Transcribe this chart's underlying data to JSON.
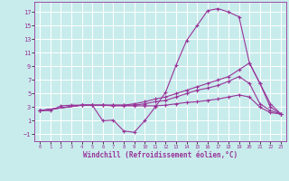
{
  "xlabel": "Windchill (Refroidissement éolien,°C)",
  "background_color": "#c8ecec",
  "grid_color": "#ffffff",
  "line_color": "#993399",
  "xlim": [
    -0.5,
    23.5
  ],
  "ylim": [
    -2,
    18.5
  ],
  "xticks": [
    0,
    1,
    2,
    3,
    4,
    5,
    6,
    7,
    8,
    9,
    10,
    11,
    12,
    13,
    14,
    15,
    16,
    17,
    18,
    19,
    20,
    21,
    22,
    23
  ],
  "yticks": [
    -1,
    1,
    3,
    5,
    7,
    9,
    11,
    13,
    15,
    17
  ],
  "curve1_x": [
    0,
    1,
    2,
    3,
    4,
    5,
    6,
    7,
    8,
    9,
    10,
    11,
    12,
    13,
    14,
    15,
    16,
    17,
    18,
    19,
    20,
    21,
    22,
    23
  ],
  "curve1_y": [
    2.5,
    2.5,
    3.2,
    3.3,
    3.3,
    3.3,
    1.0,
    1.1,
    -0.5,
    -0.7,
    1.0,
    3.0,
    5.2,
    9.2,
    12.8,
    15.0,
    17.2,
    17.5,
    17.0,
    16.3,
    9.5,
    6.5,
    3.0,
    2.0
  ],
  "curve2_x": [
    0,
    4,
    5,
    6,
    7,
    8,
    9,
    10,
    11,
    12,
    13,
    14,
    15,
    16,
    17,
    18,
    19,
    20,
    21,
    22,
    23
  ],
  "curve2_y": [
    2.5,
    3.3,
    3.3,
    3.3,
    3.3,
    3.3,
    3.5,
    3.8,
    4.2,
    4.5,
    5.0,
    5.5,
    6.0,
    6.5,
    7.0,
    7.5,
    8.5,
    9.5,
    6.5,
    3.5,
    2.0
  ],
  "curve3_x": [
    0,
    4,
    5,
    6,
    7,
    8,
    9,
    10,
    11,
    12,
    13,
    14,
    15,
    16,
    17,
    18,
    19,
    20,
    21,
    22,
    23
  ],
  "curve3_y": [
    2.5,
    3.3,
    3.3,
    3.3,
    3.3,
    3.3,
    3.3,
    3.5,
    3.8,
    4.0,
    4.5,
    5.0,
    5.5,
    5.8,
    6.2,
    6.8,
    7.5,
    6.5,
    3.5,
    2.5,
    2.0
  ],
  "curve4_x": [
    0,
    4,
    5,
    6,
    7,
    8,
    9,
    10,
    11,
    12,
    13,
    14,
    15,
    16,
    17,
    18,
    19,
    20,
    21,
    22,
    23
  ],
  "curve4_y": [
    2.5,
    3.3,
    3.3,
    3.3,
    3.2,
    3.2,
    3.2,
    3.2,
    3.2,
    3.3,
    3.5,
    3.7,
    3.8,
    4.0,
    4.2,
    4.5,
    4.8,
    4.5,
    3.0,
    2.2,
    2.0
  ]
}
